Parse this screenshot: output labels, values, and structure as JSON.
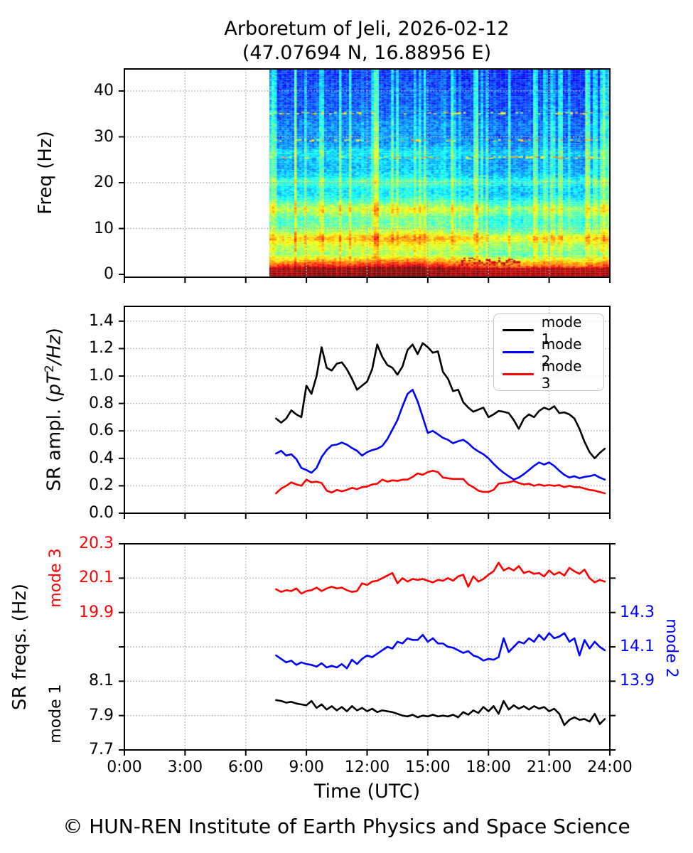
{
  "title": {
    "line1": "Arboretum of Jeli, 2026-02-12",
    "line2": "(47.07694 N, 16.88956 E)"
  },
  "footer": "© HUN-REN Institute of Earth Physics and Space Science",
  "colors": {
    "mode1": "#000000",
    "mode2": "#0000ff",
    "mode3": "#ff0000"
  },
  "style": {
    "grid_color": "#b0b0b0",
    "spine_color": "#000000",
    "background": "#ffffff"
  },
  "x_axis": {
    "label": "Time (UTC)",
    "tick_labels": [
      "0:00",
      "3:00",
      "6:00",
      "9:00",
      "12:00",
      "15:00",
      "18:00",
      "21:00",
      "24:00"
    ],
    "tick_hours": [
      0,
      3,
      6,
      9,
      12,
      15,
      18,
      21,
      24
    ],
    "range_hours": [
      0,
      24
    ],
    "sample_hours": [
      7.5,
      7.75,
      8,
      8.25,
      8.5,
      8.75,
      9,
      9.25,
      9.5,
      9.75,
      10,
      10.25,
      10.5,
      10.75,
      11,
      11.25,
      11.5,
      11.75,
      12,
      12.25,
      12.5,
      12.75,
      13,
      13.25,
      13.5,
      13.75,
      14,
      14.25,
      14.5,
      14.75,
      15,
      15.25,
      15.5,
      15.75,
      16,
      16.25,
      16.5,
      16.75,
      17,
      17.25,
      17.5,
      17.75,
      18,
      18.25,
      18.5,
      18.75,
      19,
      19.25,
      19.5,
      19.75,
      20,
      20.25,
      20.5,
      20.75,
      21,
      21.25,
      21.5,
      21.75,
      22,
      22.25,
      22.5,
      22.75,
      23,
      23.25,
      23.5,
      23.75
    ]
  },
  "chart_data": [
    {
      "panel": "spectrogram",
      "type": "heatmap",
      "ylabel": "Freq (Hz)",
      "ytick_values": [
        0,
        10,
        20,
        30,
        40
      ],
      "ytick_labels": [
        "0",
        "10",
        "20",
        "30",
        "40"
      ],
      "ylim": [
        0,
        45
      ],
      "colormap": "jet",
      "data_start_hour": 7.13,
      "data_end_hour": 24,
      "grid": true,
      "freq_profile": [
        [
          0,
          0.97
        ],
        [
          1.3,
          0.95
        ],
        [
          2,
          0.82
        ],
        [
          2.8,
          0.72
        ],
        [
          3.6,
          0.6
        ],
        [
          4.5,
          0.5
        ],
        [
          5.2,
          0.55
        ],
        [
          6.2,
          0.56
        ],
        [
          7.9,
          0.68
        ],
        [
          9,
          0.55
        ],
        [
          10.5,
          0.46
        ],
        [
          12,
          0.44
        ],
        [
          14.2,
          0.57
        ],
        [
          15.8,
          0.44
        ],
        [
          17,
          0.36
        ],
        [
          18.5,
          0.345
        ],
        [
          20.2,
          0.44
        ],
        [
          21.5,
          0.335
        ],
        [
          23,
          0.3
        ],
        [
          25,
          0.305
        ],
        [
          26.5,
          0.35
        ],
        [
          28,
          0.275
        ],
        [
          30,
          0.245
        ],
        [
          33,
          0.25
        ],
        [
          34.5,
          0.215
        ],
        [
          37,
          0.2
        ],
        [
          40,
          0.19
        ],
        [
          42,
          0.175
        ],
        [
          45.5,
          0.165
        ]
      ],
      "time_envelope": [
        [
          7.1,
          0.93
        ],
        [
          7.6,
          0.97
        ],
        [
          8.5,
          1.0
        ],
        [
          9.5,
          1.03
        ],
        [
          10.5,
          1.02
        ],
        [
          11.5,
          1.03
        ],
        [
          12.5,
          1.05
        ],
        [
          13.5,
          1.07
        ],
        [
          14.5,
          1.06
        ],
        [
          15.5,
          1.02
        ],
        [
          16.5,
          0.98
        ],
        [
          17.5,
          0.95
        ],
        [
          18.2,
          0.9
        ],
        [
          19,
          0.92
        ],
        [
          20,
          0.9
        ],
        [
          21,
          0.93
        ],
        [
          22,
          0.9
        ],
        [
          23,
          0.93
        ],
        [
          24,
          0.94
        ]
      ],
      "streak_hours": [
        7.35,
        8.45,
        9.7,
        10.65,
        11.15,
        12.45,
        13.5,
        14.85,
        16.2,
        17.35,
        19.05,
        20.3,
        21.1,
        21.55,
        22.9,
        23.3,
        23.65,
        23.9
      ],
      "speckle_rows_hz": [
        25.5,
        29.2,
        35.2
      ],
      "low_freq_streak": {
        "hours": [
          16.6,
          19.6
        ],
        "hz": [
          2.0,
          3.6
        ]
      },
      "noise": 0.13,
      "seed": 1234
    },
    {
      "panel": "sr_amplitude",
      "type": "line",
      "ylabel": "SR ampl. (pT²/Hz)",
      "ylabel_parts": {
        "prefix": "SR ampl. (",
        "italic_a": "pT",
        "sup": "2",
        "italic_b": "/Hz",
        "suffix": ")"
      },
      "ytick_values": [
        0,
        0.2,
        0.4,
        0.6,
        0.8,
        1.0,
        1.2,
        1.4
      ],
      "ytick_labels": [
        "0.0",
        "0.2",
        "0.4",
        "0.6",
        "0.8",
        "1.0",
        "1.2",
        "1.4"
      ],
      "ylim": [
        0,
        1.5
      ],
      "grid": true,
      "legend_position": "upper right",
      "series": [
        {
          "name": "mode 1",
          "color": "#000000",
          "values": [
            0.69,
            0.66,
            0.69,
            0.75,
            0.72,
            0.7,
            0.93,
            0.87,
            1.0,
            1.21,
            1.06,
            1.04,
            1.09,
            1.1,
            1.05,
            0.98,
            0.9,
            0.93,
            0.96,
            1.05,
            1.23,
            1.14,
            1.08,
            1.06,
            1.01,
            1.07,
            1.19,
            1.23,
            1.16,
            1.24,
            1.21,
            1.17,
            1.18,
            1.03,
            0.98,
            0.89,
            0.9,
            0.81,
            0.77,
            0.74,
            0.755,
            0.77,
            0.7,
            0.72,
            0.745,
            0.74,
            0.73,
            0.68,
            0.615,
            0.69,
            0.72,
            0.7,
            0.745,
            0.77,
            0.755,
            0.78,
            0.73,
            0.735,
            0.72,
            0.69,
            0.615,
            0.52,
            0.445,
            0.4,
            0.44,
            0.47
          ]
        },
        {
          "name": "mode 2",
          "color": "#0000ff",
          "values": [
            0.435,
            0.455,
            0.42,
            0.43,
            0.395,
            0.33,
            0.315,
            0.295,
            0.33,
            0.41,
            0.46,
            0.495,
            0.5,
            0.515,
            0.5,
            0.475,
            0.455,
            0.42,
            0.445,
            0.46,
            0.47,
            0.49,
            0.54,
            0.61,
            0.68,
            0.78,
            0.87,
            0.9,
            0.815,
            0.7,
            0.585,
            0.6,
            0.575,
            0.55,
            0.535,
            0.51,
            0.525,
            0.535,
            0.51,
            0.475,
            0.45,
            0.43,
            0.4,
            0.36,
            0.325,
            0.295,
            0.27,
            0.245,
            0.26,
            0.285,
            0.315,
            0.345,
            0.37,
            0.355,
            0.37,
            0.345,
            0.31,
            0.28,
            0.26,
            0.27,
            0.255,
            0.265,
            0.27,
            0.28,
            0.26,
            0.245
          ]
        },
        {
          "name": "mode 3",
          "color": "#ff0000",
          "values": [
            0.145,
            0.18,
            0.2,
            0.225,
            0.21,
            0.2,
            0.245,
            0.225,
            0.23,
            0.22,
            0.165,
            0.15,
            0.17,
            0.16,
            0.17,
            0.185,
            0.175,
            0.19,
            0.195,
            0.21,
            0.215,
            0.245,
            0.23,
            0.24,
            0.235,
            0.245,
            0.245,
            0.265,
            0.29,
            0.28,
            0.3,
            0.31,
            0.3,
            0.26,
            0.255,
            0.25,
            0.25,
            0.25,
            0.21,
            0.19,
            0.165,
            0.155,
            0.155,
            0.17,
            0.215,
            0.22,
            0.225,
            0.235,
            0.22,
            0.21,
            0.215,
            0.2,
            0.21,
            0.2,
            0.205,
            0.2,
            0.205,
            0.19,
            0.2,
            0.19,
            0.19,
            0.18,
            0.17,
            0.165,
            0.155,
            0.145
          ]
        }
      ]
    },
    {
      "panel": "sr_frequencies",
      "type": "line",
      "ylabel": "SR freqs. (Hz)",
      "left_label_top": "mode 3",
      "left_label_bottom": "mode 1",
      "right_label": "mode 2",
      "num_ticks": 7,
      "left_ticks_top": {
        "labels": [
          "20.3",
          "20.1",
          "19.9"
        ],
        "tick_index": [
          0,
          1,
          2
        ],
        "color_key": "mode3"
      },
      "left_ticks_bottom": {
        "labels": [
          "8.1",
          "7.9",
          "7.7"
        ],
        "tick_index": [
          4,
          5,
          6
        ],
        "color_key": "mode1"
      },
      "right_ticks": {
        "labels": [
          "14.3",
          "14.1",
          "13.9"
        ],
        "tick_index": [
          2,
          3,
          4
        ],
        "color_key": "mode2"
      },
      "grid": true,
      "series": [
        {
          "name": "mode 1",
          "color": "#000000",
          "scale": "mode1",
          "scale_ticks": [
            8.1,
            7.9,
            7.7
          ],
          "values": [
            7.99,
            7.985,
            7.975,
            7.98,
            7.97,
            7.965,
            7.96,
            7.985,
            7.945,
            7.965,
            7.935,
            7.955,
            7.93,
            7.95,
            7.925,
            7.955,
            7.93,
            7.945,
            7.925,
            7.94,
            7.92,
            7.93,
            7.925,
            7.92,
            7.91,
            7.9,
            7.895,
            7.905,
            7.89,
            7.9,
            7.895,
            7.905,
            7.895,
            7.9,
            7.895,
            7.905,
            7.89,
            7.92,
            7.905,
            7.93,
            7.915,
            7.95,
            7.925,
            7.955,
            7.91,
            7.985,
            7.935,
            7.96,
            7.94,
            7.955,
            7.935,
            7.955,
            7.94,
            7.95,
            7.925,
            7.94,
            7.91,
            7.845,
            7.875,
            7.89,
            7.875,
            7.88,
            7.865,
            7.91,
            7.85,
            7.88
          ]
        },
        {
          "name": "mode 2",
          "color": "#0000ff",
          "scale": "mode2",
          "scale_ticks": [
            14.3,
            14.1,
            13.9
          ],
          "values": [
            14.05,
            14.03,
            14.01,
            14.02,
            13.995,
            14.01,
            14.0,
            13.995,
            13.985,
            14.005,
            13.98,
            13.99,
            13.98,
            14.0,
            13.975,
            14.025,
            14.0,
            14.03,
            14.05,
            14.04,
            14.06,
            14.08,
            14.1,
            14.09,
            14.13,
            14.12,
            14.15,
            14.14,
            14.14,
            14.17,
            14.13,
            14.15,
            14.12,
            14.12,
            14.1,
            14.095,
            14.08,
            14.065,
            14.075,
            14.05,
            14.04,
            14.02,
            14.03,
            14.025,
            14.04,
            14.15,
            14.07,
            14.1,
            14.13,
            14.12,
            14.15,
            14.13,
            14.17,
            14.14,
            14.18,
            14.15,
            14.16,
            14.18,
            14.13,
            14.15,
            14.05,
            14.14,
            14.09,
            14.13,
            14.1,
            14.08
          ]
        },
        {
          "name": "mode 3",
          "color": "#ff0000",
          "scale": "mode3",
          "scale_ticks": [
            20.3,
            20.1,
            19.9
          ],
          "values": [
            20.035,
            20.02,
            20.03,
            20.025,
            20.04,
            20.01,
            20.025,
            20.03,
            20.045,
            20.025,
            20.04,
            20.05,
            20.04,
            20.045,
            20.03,
            20.02,
            20.025,
            20.07,
            20.06,
            20.08,
            20.085,
            20.1,
            20.115,
            20.13,
            20.07,
            20.1,
            20.08,
            20.095,
            20.09,
            20.095,
            20.085,
            20.075,
            20.09,
            20.085,
            20.1,
            20.085,
            20.11,
            20.12,
            20.05,
            20.11,
            20.08,
            20.095,
            20.12,
            20.14,
            20.19,
            20.145,
            20.16,
            20.145,
            20.17,
            20.13,
            20.14,
            20.125,
            20.13,
            20.11,
            20.145,
            20.12,
            20.135,
            20.115,
            20.16,
            20.14,
            20.125,
            20.15,
            20.1,
            20.075,
            20.09,
            20.08
          ]
        }
      ]
    }
  ],
  "legend": {
    "entries": [
      "mode 1",
      "mode 2",
      "mode 3"
    ]
  }
}
